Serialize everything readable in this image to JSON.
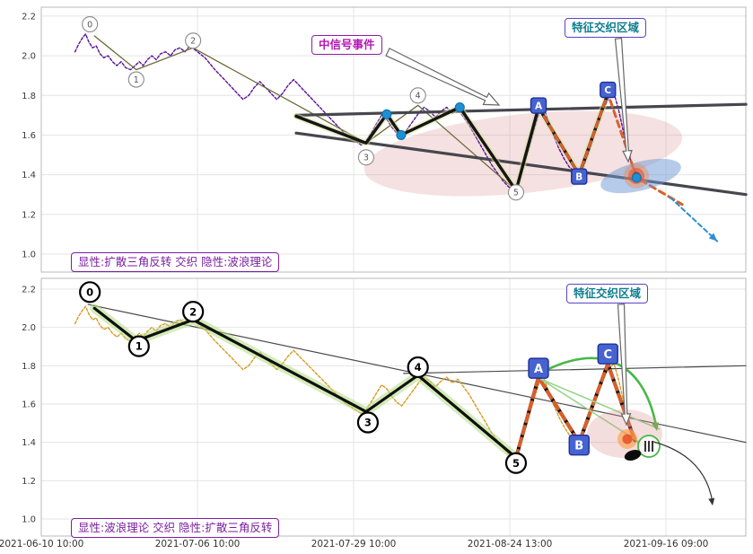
{
  "figure": {
    "background": "#ffffff"
  },
  "colors": {
    "price_top": "#5a0f9e",
    "price_bottom": "#d99a1e",
    "triangle_line": "#46464e",
    "wave_line": "#101010",
    "abc_dash": "#d95f2b",
    "pivot_marker": "#1d8fd4",
    "square_fill": "#4663d0",
    "square_edge": "#20309e",
    "wave_halo": "#b0dc82",
    "green_arc": "#46b846",
    "zone_pink": "#d98f8f",
    "zone_blue": "#6e98d6",
    "projection_blue": "#2d8fd0"
  },
  "annotations": {
    "mid_signal_event": "中信号事件",
    "feature_zone_top": "特征交织区域",
    "feature_zone_bottom": "特征交织区域",
    "pattern_label_top": "显性:扩散三角反转 交织 隐性:波浪理论",
    "pattern_label_bottom": "显性:波浪理论 交织 隐性:扩散三角反转"
  },
  "chart_data": {
    "type": "line",
    "title": "",
    "x_axis": {
      "unit": "fraction of span between first and last x tick",
      "xlim": [
        0,
        1.128
      ],
      "ticks": {
        "positions": [
          0,
          0.25,
          0.5,
          0.75,
          1.0
        ],
        "labels": [
          "2021-06-10 10:00",
          "2021-07-06 10:00",
          "2021-07-29 10:00",
          "2021-08-24 13:00",
          "2021-09-16 09:00"
        ]
      }
    },
    "y_ticks": [
      1.0,
      1.2,
      1.4,
      1.6,
      1.8,
      2.0,
      2.2
    ],
    "price_series": [
      [
        0.054,
        2.02
      ],
      [
        0.06,
        2.06
      ],
      [
        0.066,
        2.09
      ],
      [
        0.071,
        2.11
      ],
      [
        0.076,
        2.07
      ],
      [
        0.082,
        2.04
      ],
      [
        0.088,
        2.05
      ],
      [
        0.094,
        2.01
      ],
      [
        0.1,
        1.99
      ],
      [
        0.107,
        2.0
      ],
      [
        0.114,
        1.97
      ],
      [
        0.121,
        1.95
      ],
      [
        0.128,
        1.97
      ],
      [
        0.135,
        1.94
      ],
      [
        0.143,
        1.93
      ],
      [
        0.15,
        1.95
      ],
      [
        0.157,
        1.97
      ],
      [
        0.163,
        1.95
      ],
      [
        0.17,
        1.98
      ],
      [
        0.177,
        2.0
      ],
      [
        0.184,
        1.98
      ],
      [
        0.191,
        2.01
      ],
      [
        0.199,
        2.02
      ],
      [
        0.207,
        2.0
      ],
      [
        0.214,
        2.03
      ],
      [
        0.222,
        2.04
      ],
      [
        0.23,
        2.02
      ],
      [
        0.238,
        2.05
      ],
      [
        0.246,
        2.03
      ],
      [
        0.254,
        2.01
      ],
      [
        0.262,
        1.99
      ],
      [
        0.27,
        1.96
      ],
      [
        0.278,
        1.93
      ],
      [
        0.287,
        1.9
      ],
      [
        0.296,
        1.87
      ],
      [
        0.305,
        1.84
      ],
      [
        0.314,
        1.81
      ],
      [
        0.323,
        1.78
      ],
      [
        0.332,
        1.8
      ],
      [
        0.341,
        1.84
      ],
      [
        0.35,
        1.87
      ],
      [
        0.359,
        1.84
      ],
      [
        0.368,
        1.81
      ],
      [
        0.377,
        1.78
      ],
      [
        0.386,
        1.81
      ],
      [
        0.395,
        1.85
      ],
      [
        0.404,
        1.88
      ],
      [
        0.413,
        1.85
      ],
      [
        0.422,
        1.82
      ],
      [
        0.431,
        1.79
      ],
      [
        0.44,
        1.76
      ],
      [
        0.449,
        1.73
      ],
      [
        0.458,
        1.7
      ],
      [
        0.467,
        1.67
      ],
      [
        0.476,
        1.64
      ],
      [
        0.485,
        1.61
      ],
      [
        0.494,
        1.59
      ],
      [
        0.503,
        1.57
      ],
      [
        0.512,
        1.55
      ],
      [
        0.52,
        1.57
      ],
      [
        0.528,
        1.61
      ],
      [
        0.537,
        1.66
      ],
      [
        0.545,
        1.7
      ],
      [
        0.553,
        1.68
      ],
      [
        0.561,
        1.64
      ],
      [
        0.569,
        1.61
      ],
      [
        0.577,
        1.59
      ],
      [
        0.586,
        1.63
      ],
      [
        0.595,
        1.67
      ],
      [
        0.604,
        1.71
      ],
      [
        0.613,
        1.74
      ],
      [
        0.622,
        1.72
      ],
      [
        0.631,
        1.69
      ],
      [
        0.64,
        1.72
      ],
      [
        0.649,
        1.74
      ],
      [
        0.658,
        1.71
      ],
      [
        0.667,
        1.73
      ],
      [
        0.676,
        1.69
      ],
      [
        0.685,
        1.65
      ],
      [
        0.694,
        1.6
      ],
      [
        0.703,
        1.55
      ],
      [
        0.712,
        1.5
      ],
      [
        0.721,
        1.45
      ],
      [
        0.73,
        1.41
      ],
      [
        0.739,
        1.37
      ],
      [
        0.748,
        1.34
      ],
      [
        0.757,
        1.32
      ],
      [
        0.765,
        1.37
      ],
      [
        0.773,
        1.45
      ],
      [
        0.781,
        1.54
      ],
      [
        0.789,
        1.63
      ],
      [
        0.797,
        1.71
      ],
      [
        0.805,
        1.73
      ],
      [
        0.813,
        1.66
      ],
      [
        0.821,
        1.59
      ],
      [
        0.829,
        1.53
      ],
      [
        0.837,
        1.48
      ],
      [
        0.845,
        1.44
      ],
      [
        0.853,
        1.42
      ],
      [
        0.861,
        1.4
      ],
      [
        0.869,
        1.45
      ],
      [
        0.877,
        1.52
      ],
      [
        0.885,
        1.6
      ],
      [
        0.893,
        1.68
      ],
      [
        0.901,
        1.74
      ],
      [
        0.909,
        1.79
      ],
      [
        0.917,
        1.81
      ],
      [
        0.924,
        1.73
      ],
      [
        0.931,
        1.63
      ],
      [
        0.938,
        1.53
      ],
      [
        0.945,
        1.46
      ],
      [
        0.952,
        1.41
      ],
      [
        0.959,
        1.38
      ]
    ],
    "wave_points": [
      {
        "label": "0",
        "x": 0.085,
        "value": 2.1
      },
      {
        "label": "1",
        "x": 0.152,
        "value": 1.93
      },
      {
        "label": "2",
        "x": 0.243,
        "value": 2.04
      },
      {
        "label": "3",
        "x": 0.52,
        "value": 1.56
      },
      {
        "label": "4",
        "x": 0.603,
        "value": 1.75
      },
      {
        "label": "5",
        "x": 0.76,
        "value": 1.32
      }
    ],
    "abc_points": [
      {
        "label": "A",
        "x": 0.796,
        "value": 1.74
      },
      {
        "label": "B",
        "x": 0.861,
        "value": 1.4
      },
      {
        "label": "C",
        "x": 0.907,
        "value": 1.81
      }
    ],
    "panels": [
      {
        "id": "top",
        "explicit_pattern": "扩散三角反转",
        "implicit_pattern": "波浪理论",
        "ylim": [
          0.909,
          2.245
        ],
        "triangle_upper": [
          [
            0.408,
            1.7
          ],
          [
            1.128,
            1.755
          ]
        ],
        "triangle_lower": [
          [
            0.408,
            1.61
          ],
          [
            1.128,
            1.3
          ]
        ],
        "zigzag": [
          [
            0.408,
            1.695
          ],
          [
            0.52,
            1.56
          ],
          [
            0.553,
            1.705
          ],
          [
            0.576,
            1.6
          ],
          [
            0.67,
            1.74
          ],
          [
            0.76,
            1.32
          ],
          [
            0.796,
            1.74
          ],
          [
            0.861,
            1.4
          ],
          [
            0.907,
            1.81
          ]
        ],
        "blue_markers": [
          [
            0.553,
            1.705
          ],
          [
            0.576,
            1.6
          ],
          [
            0.67,
            1.74
          ],
          [
            0.953,
            1.385
          ]
        ],
        "abc_projection": [
          [
            0.796,
            1.74
          ],
          [
            0.861,
            1.4
          ],
          [
            0.907,
            1.81
          ],
          [
            0.953,
            1.385
          ],
          [
            1.026,
            1.25
          ]
        ],
        "blue_projection": [
          [
            1.007,
            1.285
          ],
          [
            1.082,
            1.065
          ]
        ]
      },
      {
        "id": "bottom",
        "explicit_pattern": "波浪理论",
        "implicit_pattern": "扩散三角反转",
        "ylim": [
          0.911,
          2.256
        ],
        "trend_down": [
          [
            0.075,
            2.12
          ],
          [
            1.128,
            1.4
          ]
        ],
        "trend_up": [
          [
            0.58,
            1.76
          ],
          [
            1.128,
            1.8
          ]
        ],
        "abc_path": [
          [
            0.76,
            1.32
          ],
          [
            0.796,
            1.74
          ],
          [
            0.861,
            1.4
          ],
          [
            0.907,
            1.81
          ],
          [
            0.95,
            1.41
          ]
        ]
      }
    ]
  }
}
